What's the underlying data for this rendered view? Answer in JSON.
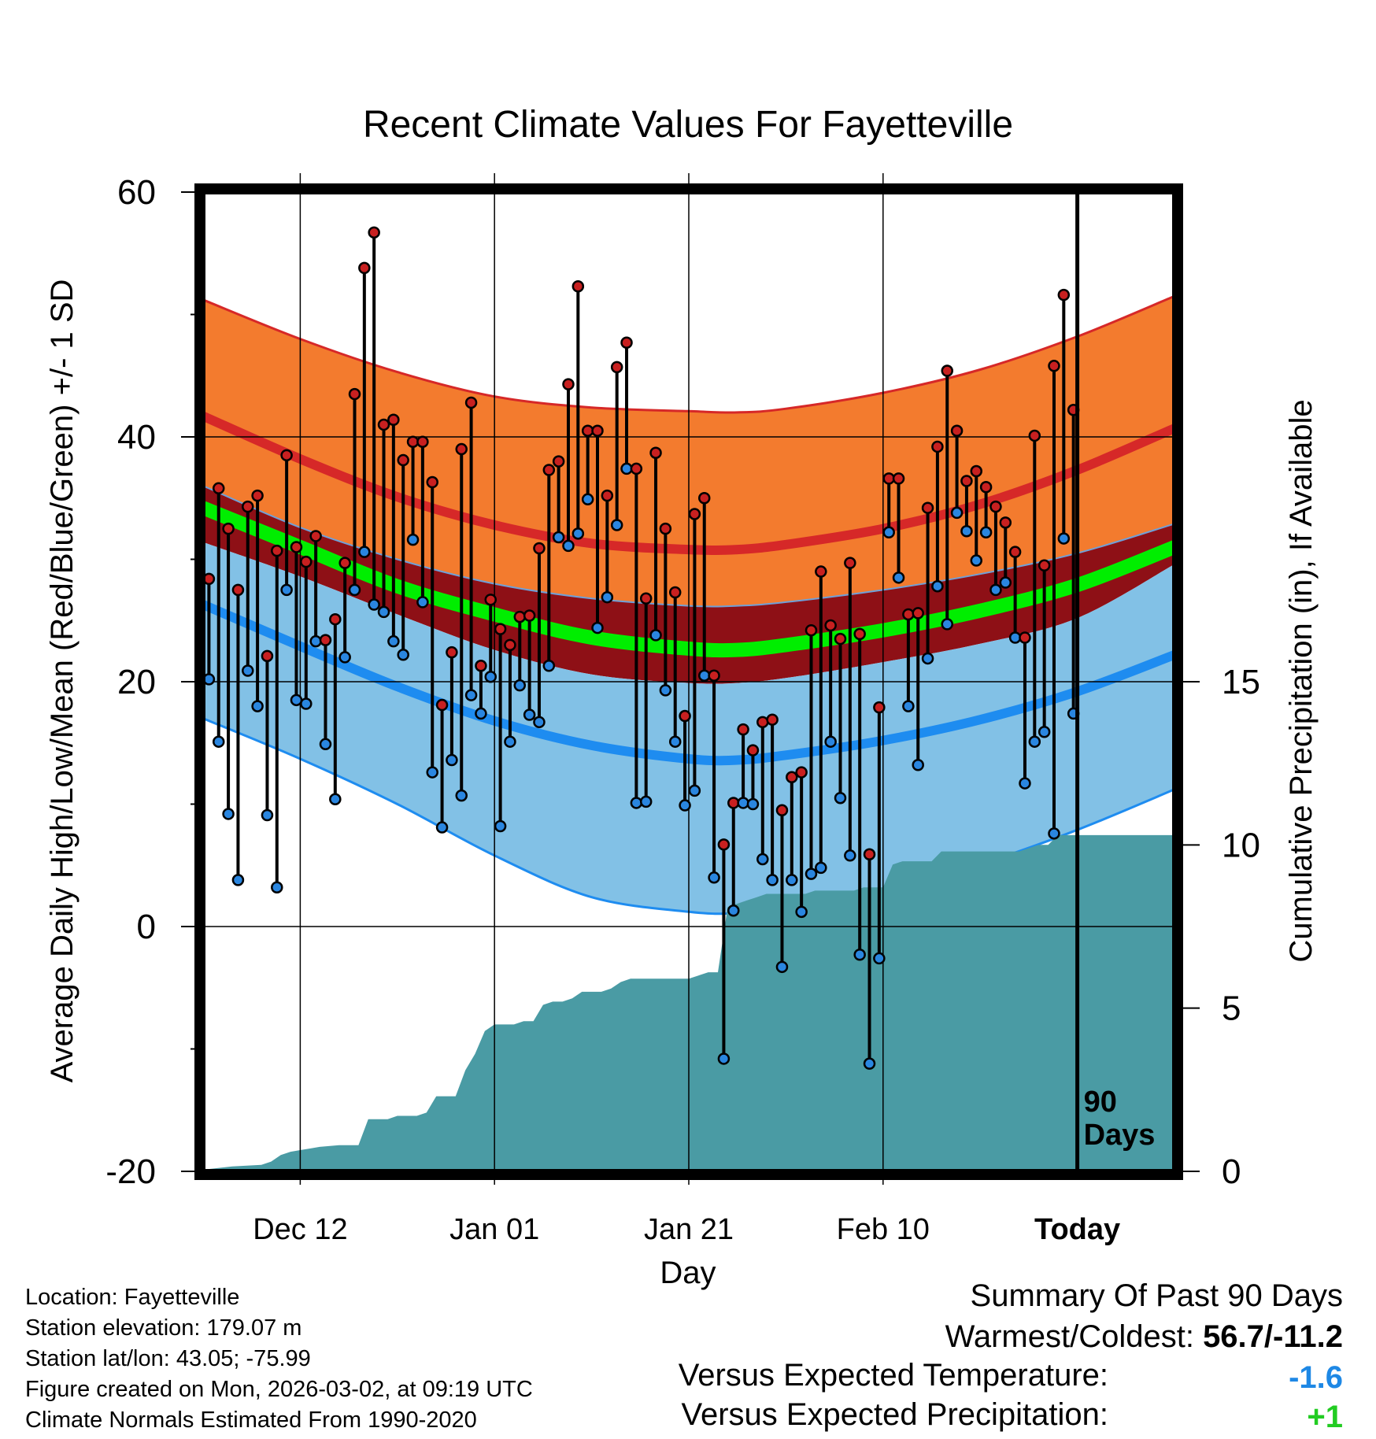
{
  "chart_data": {
    "type": "line",
    "title": "Recent Climate Values For Fayetteville",
    "xlabel": "Day",
    "ylabel": "Average Daily High/Low/Mean (Red/Blue/Green) +/- 1 SD",
    "y2label": "Cumulative Precipitation (in), If Available",
    "ylim": [
      -20,
      60
    ],
    "y2lim": [
      0,
      30
    ],
    "xlim": [
      0,
      100
    ],
    "y_ticks": [
      "60",
      "40",
      "20",
      "0",
      "-20"
    ],
    "y2_ticks": [
      "15",
      "10",
      "5",
      "0"
    ],
    "x_ticks": [
      {
        "label": "Dec 12",
        "x": 10
      },
      {
        "label": "Jan 01",
        "x": 30
      },
      {
        "label": "Jan 21",
        "x": 50
      },
      {
        "label": "Feb 10",
        "x": 70
      },
      {
        "label": "Today",
        "x": 90
      }
    ],
    "today_marker": {
      "x": 90,
      "label": "90\nDays"
    },
    "normals": {
      "x": [
        0,
        10,
        20,
        30,
        40,
        50,
        55,
        60,
        70,
        80,
        90,
        100
      ],
      "high_plus": [
        51.2,
        48.0,
        45.3,
        43.3,
        42.4,
        42.1,
        42.0,
        42.3,
        43.6,
        45.5,
        48.2,
        51.5
      ],
      "high": [
        41.7,
        38.2,
        35.1,
        32.8,
        31.3,
        30.8,
        30.8,
        31.2,
        32.5,
        34.5,
        37.3,
        40.7
      ],
      "high_minus": [
        36.0,
        32.6,
        30.0,
        28.0,
        26.8,
        26.2,
        26.2,
        26.5,
        27.5,
        28.8,
        30.5,
        32.9
      ],
      "mean": [
        34.2,
        31.0,
        27.8,
        25.5,
        23.6,
        22.7,
        22.6,
        23.0,
        24.2,
        25.8,
        27.9,
        31.0
      ],
      "low_plus": [
        31.4,
        28.6,
        25.5,
        22.6,
        20.6,
        19.9,
        19.9,
        20.3,
        21.6,
        23.1,
        25.2,
        29.6
      ],
      "low": [
        26.3,
        22.9,
        19.6,
        16.8,
        14.8,
        13.7,
        13.6,
        14.0,
        15.2,
        16.9,
        19.2,
        22.2
      ],
      "low_minus": [
        17.0,
        13.7,
        10.0,
        5.8,
        2.4,
        1.2,
        1.1,
        1.6,
        3.0,
        5.1,
        7.9,
        11.2
      ]
    },
    "series": [
      {
        "name": "Daily High",
        "x": [
          0,
          1,
          2,
          3,
          4,
          5,
          6,
          7,
          8,
          9,
          10,
          11,
          12,
          13,
          14,
          15,
          16,
          17,
          18,
          19,
          20,
          21,
          22,
          23,
          24,
          25,
          26,
          27,
          28,
          29,
          30,
          31,
          32,
          33,
          34,
          35,
          36,
          37,
          38,
          39,
          40,
          41,
          42,
          43,
          44,
          45,
          46,
          47,
          48,
          49,
          50,
          51,
          52,
          53,
          54,
          55,
          56,
          57,
          58,
          59,
          60,
          61,
          62,
          63,
          64,
          65,
          66,
          67,
          68,
          69,
          70,
          71,
          72,
          73,
          74,
          75,
          76,
          77,
          78,
          79,
          80,
          81,
          82,
          83,
          84,
          85,
          86,
          87,
          88,
          89
        ],
        "values": [
          28.4,
          35.8,
          32.5,
          27.5,
          34.3,
          35.2,
          22.1,
          30.7,
          38.5,
          31.0,
          29.8,
          31.9,
          23.4,
          25.1,
          29.7,
          43.5,
          53.8,
          56.7,
          41.0,
          41.4,
          38.1,
          39.6,
          39.6,
          36.3,
          18.1,
          22.4,
          39.0,
          42.8,
          21.3,
          26.7,
          24.3,
          23.0,
          25.3,
          25.4,
          30.9,
          37.3,
          38.0,
          44.3,
          52.3,
          40.5,
          40.5,
          35.2,
          45.7,
          47.7,
          37.4,
          26.8,
          38.7,
          32.5,
          27.3,
          17.2,
          33.7,
          35.0,
          20.5,
          6.7,
          10.1,
          16.1,
          14.4,
          16.7,
          16.9,
          9.5,
          12.2,
          12.6,
          24.2,
          29.0,
          24.6,
          23.5,
          29.7,
          23.9,
          5.9,
          17.9,
          36.6,
          36.6,
          25.5,
          25.6,
          34.2,
          39.2,
          45.4,
          40.5,
          36.4,
          37.2,
          35.9,
          34.3,
          33.0,
          30.6,
          23.6,
          40.1,
          29.5,
          45.8,
          51.6,
          42.2
        ]
      },
      {
        "name": "Daily Low",
        "x": [
          0,
          1,
          2,
          3,
          4,
          5,
          6,
          7,
          8,
          9,
          10,
          11,
          12,
          13,
          14,
          15,
          16,
          17,
          18,
          19,
          20,
          21,
          22,
          23,
          24,
          25,
          26,
          27,
          28,
          29,
          30,
          31,
          32,
          33,
          34,
          35,
          36,
          37,
          38,
          39,
          40,
          41,
          42,
          43,
          44,
          45,
          46,
          47,
          48,
          49,
          50,
          51,
          52,
          53,
          54,
          55,
          56,
          57,
          58,
          59,
          60,
          61,
          62,
          63,
          64,
          65,
          66,
          67,
          68,
          69,
          70,
          71,
          72,
          73,
          74,
          75,
          76,
          77,
          78,
          79,
          80,
          81,
          82,
          83,
          84,
          85,
          86,
          87,
          88,
          89
        ],
        "values": [
          20.2,
          15.1,
          9.2,
          3.8,
          20.9,
          18.0,
          9.1,
          3.2,
          27.5,
          18.5,
          18.2,
          23.3,
          14.9,
          10.4,
          22.0,
          27.5,
          30.6,
          26.3,
          25.7,
          23.3,
          22.2,
          31.6,
          26.5,
          12.6,
          8.1,
          13.6,
          10.7,
          18.9,
          17.4,
          20.4,
          8.2,
          15.1,
          19.7,
          17.3,
          16.7,
          21.3,
          31.8,
          31.1,
          32.1,
          34.9,
          24.4,
          26.9,
          32.8,
          37.4,
          10.1,
          10.2,
          23.8,
          19.3,
          15.1,
          9.9,
          11.1,
          20.5,
          4.0,
          -10.8,
          1.3,
          10.1,
          10.0,
          5.5,
          3.8,
          -3.3,
          3.8,
          1.2,
          4.3,
          4.8,
          15.1,
          10.5,
          5.8,
          -2.3,
          -11.2,
          -2.6,
          32.2,
          28.5,
          18.0,
          13.2,
          21.9,
          27.8,
          24.7,
          33.8,
          32.3,
          29.9,
          32.2,
          27.5,
          28.1,
          23.6,
          11.7,
          15.1,
          15.9,
          7.6,
          31.7,
          17.4
        ]
      }
    ],
    "precip_cumulative": {
      "x": [
        0,
        3,
        6,
        7,
        8,
        9,
        10,
        11,
        12,
        14,
        15,
        16,
        17,
        18,
        19,
        20,
        21,
        22,
        23,
        24,
        25,
        26,
        27,
        28,
        29,
        30,
        31,
        32,
        33,
        34,
        35,
        36,
        37,
        38,
        39,
        40,
        41,
        42,
        43,
        44,
        45,
        46,
        47,
        48,
        49,
        50,
        51,
        52,
        53,
        54,
        55,
        56,
        57,
        58,
        59,
        60,
        61,
        62,
        63,
        64,
        65,
        66,
        67,
        68,
        69,
        70,
        71,
        72,
        73,
        74,
        75,
        76,
        77,
        78,
        79,
        80,
        81,
        82,
        83,
        84,
        85,
        86,
        87,
        88,
        89,
        90,
        100
      ],
      "values": [
        0.05,
        0.15,
        0.2,
        0.3,
        0.5,
        0.6,
        0.65,
        0.7,
        0.75,
        0.8,
        0.8,
        0.8,
        1.6,
        1.6,
        1.6,
        1.7,
        1.7,
        1.7,
        1.8,
        2.3,
        2.3,
        2.3,
        3.1,
        3.6,
        4.3,
        4.5,
        4.5,
        4.5,
        4.6,
        4.6,
        5.1,
        5.2,
        5.2,
        5.3,
        5.5,
        5.5,
        5.5,
        5.6,
        5.8,
        5.9,
        5.9,
        5.9,
        5.9,
        5.9,
        5.9,
        5.9,
        6.0,
        6.1,
        6.1,
        8.1,
        8.2,
        8.3,
        8.4,
        8.5,
        8.5,
        8.5,
        8.5,
        8.5,
        8.6,
        8.6,
        8.6,
        8.6,
        8.6,
        8.7,
        8.7,
        8.7,
        9.4,
        9.5,
        9.5,
        9.5,
        9.5,
        9.8,
        9.8,
        9.8,
        9.8,
        9.8,
        9.8,
        9.8,
        9.8,
        9.8,
        9.9,
        10,
        10,
        10.3,
        10.3,
        10.3,
        10.3
      ]
    }
  },
  "info": {
    "location": "Location: Fayetteville",
    "elevation": "Station elevation: 179.07 m",
    "latlon": "Station lat/lon: 43.05; -75.99",
    "created": "Figure created on Mon, 2026-03-02, at 09:19 UTC",
    "normals_period": "Climate Normals Estimated From 1990-2020"
  },
  "summary": {
    "heading": "Summary Of Past 90 Days",
    "warmest_label": "Warmest/Coldest: ",
    "warmest_value": "56.7/-11.2",
    "temp_label": "Versus Expected Temperature:",
    "temp_value": "-1.6",
    "precip_label": "Versus Expected Precipitation:",
    "precip_value": "+1"
  },
  "colors": {
    "high_band": "#F37B2E",
    "high_line": "#D62828",
    "high_minus_band": "#8E1016",
    "mean_line": "#00EE00",
    "low_band": "#82C1E6",
    "low_line": "#1E8CF0",
    "precip_fill": "#4A9BA4",
    "high_dot": "#C82020",
    "low_dot": "#2A86E0",
    "temp_value": "#1E88E5",
    "precip_value": "#22CC22"
  }
}
